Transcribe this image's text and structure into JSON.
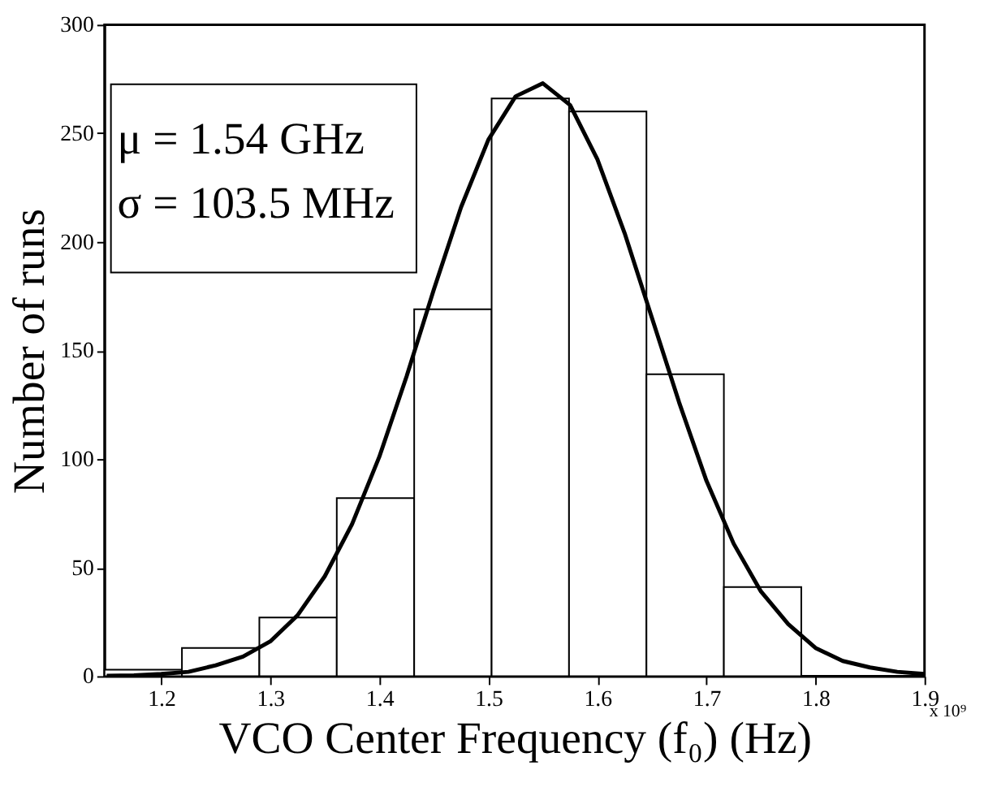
{
  "chart_data": {
    "type": "histogram",
    "xlabel": "VCO Center Frequency (f₀) (Hz)",
    "ylabel": "Number of runs",
    "xlim": [
      1.148,
      1.9
    ],
    "xticks": [
      1.2,
      1.3,
      1.4,
      1.5,
      1.6,
      1.7,
      1.8,
      1.9
    ],
    "ylim": [
      0,
      300
    ],
    "yticks": [
      0,
      50,
      100,
      150,
      200,
      250,
      300
    ],
    "grid": false,
    "annotations": [
      "μ = 1.54 GHz",
      "σ = 103.5 MHz",
      "x 10⁹"
    ],
    "series": [
      {
        "color": "#ffffff",
        "bins": [
          1.148,
          1.219,
          1.29,
          1.361,
          1.432,
          1.503,
          1.574,
          1.645,
          1.716,
          1.787
        ],
        "values": [
          3,
          13,
          27,
          82,
          169,
          266,
          260,
          139,
          41
        ]
      },
      {
        "type": "line",
        "color": "#000000",
        "x": [
          1.15,
          1.175,
          1.2,
          1.225,
          1.25,
          1.275,
          1.3,
          1.325,
          1.35,
          1.375,
          1.4,
          1.425,
          1.45,
          1.475,
          1.5,
          1.525,
          1.55,
          1.575,
          1.6,
          1.625,
          1.65,
          1.675,
          1.7,
          1.725,
          1.75,
          1.775,
          1.8,
          1.825,
          1.85,
          1.875,
          1.9
        ],
        "values": [
          0.2,
          0.4,
          1,
          2,
          5,
          9,
          16,
          28,
          46,
          70,
          101,
          138,
          178,
          216,
          247,
          267,
          273,
          263,
          238,
          204,
          165,
          126,
          90,
          61,
          39,
          24,
          13,
          7,
          4,
          2,
          1
        ]
      }
    ]
  }
}
